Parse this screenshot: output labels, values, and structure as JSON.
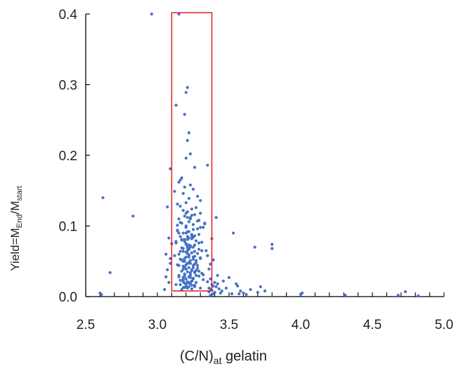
{
  "chart_data": {
    "type": "scatter",
    "xlabel": {
      "main": "(C/N)",
      "sub": "at",
      "rest": " gelatin"
    },
    "ylabel": {
      "main": "Yield=M",
      "sub1": "End",
      "mid": "/M",
      "sub2": "start"
    },
    "xlim": [
      2.5,
      5.0
    ],
    "ylim": [
      0.0,
      0.4
    ],
    "xticks": [
      "2.5",
      "3.0",
      "3.5",
      "4.0",
      "4.5",
      "5.0"
    ],
    "xtick_values": [
      2.5,
      3.0,
      3.5,
      4.0,
      4.5,
      5.0
    ],
    "yticks": [
      "0.0",
      "0.1",
      "0.2",
      "0.3",
      "0.4"
    ],
    "ytick_values": [
      0.0,
      0.1,
      0.2,
      0.3,
      0.4
    ],
    "grid": false,
    "marker_color": "#4472c4",
    "highlight_box": {
      "x": [
        3.1,
        3.38
      ],
      "y": [
        0.008,
        0.4
      ],
      "color": "#e02020"
    },
    "points": {
      "x": [
        2.96,
        3.15,
        3.21,
        3.2,
        3.13,
        3.19,
        3.22,
        3.21,
        3.23,
        3.2,
        3.35,
        3.26,
        3.09,
        3.17,
        3.16,
        3.15,
        3.23,
        3.19,
        3.25,
        3.12,
        3.18,
        3.28,
        3.22,
        3.3,
        3.2,
        3.14,
        3.16,
        3.27,
        3.24,
        3.18,
        3.21,
        3.3,
        3.26,
        3.19,
        3.23,
        3.15,
        3.29,
        3.22,
        3.17,
        3.25,
        3.2,
        3.32,
        3.28,
        3.14,
        3.21,
        3.18,
        3.24,
        3.26,
        3.16,
        3.22,
        3.19,
        3.27,
        3.31,
        3.13,
        3.2,
        3.23,
        3.25,
        3.17,
        3.29,
        3.21,
        3.18,
        3.24,
        3.15,
        3.22,
        3.26,
        3.2,
        3.3,
        3.16,
        3.23,
        3.19,
        3.27,
        3.21,
        3.14,
        3.25,
        3.18,
        3.22,
        3.28,
        3.2,
        3.24,
        3.17,
        3.21,
        3.26,
        3.19,
        3.23,
        3.15,
        3.29,
        3.22,
        3.18,
        3.25,
        3.2,
        3.32,
        3.16,
        3.24,
        3.21,
        3.27,
        3.19,
        3.23,
        3.13,
        3.26,
        3.2,
        3.22,
        3.18,
        3.3,
        3.24,
        3.17,
        3.21,
        3.25,
        3.19,
        3.28,
        3.15,
        3.23,
        3.2,
        3.26,
        3.22,
        3.18,
        3.24,
        3.16,
        3.29,
        3.21,
        3.19,
        3.27,
        3.23,
        3.2,
        3.14,
        3.25,
        3.22,
        3.18,
        3.31,
        3.24,
        3.2,
        3.17,
        3.26,
        3.21,
        3.23,
        3.19,
        3.28,
        3.15,
        3.22,
        3.25,
        3.2,
        3.18,
        3.24,
        3.3,
        3.21,
        3.16,
        3.23,
        3.27,
        3.19,
        3.22,
        3.2,
        3.12,
        3.25,
        3.18,
        3.33,
        3.24,
        3.21,
        3.17,
        3.26,
        3.2,
        3.23,
        3.14,
        3.29,
        3.22,
        3.19,
        3.25,
        3.21,
        3.18,
        3.27,
        3.23,
        3.16,
        3.2,
        3.24,
        3.31,
        3.22,
        3.19,
        3.26,
        3.13,
        3.21,
        3.28,
        3.18,
        3.24,
        3.2,
        3.15,
        3.23,
        3.25,
        3.29,
        3.22,
        3.17,
        3.2,
        3.26,
        3.19,
        3.21,
        3.3,
        3.24,
        3.18,
        2.62,
        2.83,
        2.6,
        2.67,
        2.61,
        3.07,
        3.08,
        3.06,
        3.09,
        3.07,
        3.05,
        3.08,
        3.1,
        3.09,
        3.06,
        3.36,
        3.38,
        3.4,
        3.42,
        3.37,
        3.39,
        3.41,
        3.43,
        3.45,
        3.38,
        3.4,
        3.36,
        3.39,
        3.44,
        3.37,
        3.41,
        3.42,
        3.46,
        3.38,
        3.4,
        3.5,
        3.53,
        3.55,
        3.58,
        3.6,
        3.48,
        3.52,
        3.56,
        3.65,
        3.7,
        3.72,
        3.68,
        3.75,
        3.8,
        3.8,
        3.62,
        3.57,
        4.0,
        4.01,
        4.31,
        4.68,
        4.73,
        4.82,
        3.35,
        3.37,
        3.33,
        3.38,
        3.34,
        3.36,
        3.39,
        3.32,
        3.35,
        3.37
      ],
      "y": [
        0.4,
        0.4,
        0.296,
        0.289,
        0.271,
        0.258,
        0.232,
        0.221,
        0.202,
        0.196,
        0.186,
        0.183,
        0.181,
        0.168,
        0.165,
        0.162,
        0.158,
        0.155,
        0.152,
        0.149,
        0.146,
        0.142,
        0.139,
        0.136,
        0.133,
        0.131,
        0.128,
        0.126,
        0.124,
        0.122,
        0.12,
        0.118,
        0.116,
        0.114,
        0.112,
        0.11,
        0.108,
        0.106,
        0.104,
        0.102,
        0.1,
        0.098,
        0.096,
        0.094,
        0.092,
        0.09,
        0.088,
        0.086,
        0.085,
        0.083,
        0.081,
        0.079,
        0.077,
        0.076,
        0.074,
        0.072,
        0.07,
        0.069,
        0.067,
        0.065,
        0.064,
        0.062,
        0.06,
        0.059,
        0.057,
        0.056,
        0.054,
        0.053,
        0.051,
        0.05,
        0.048,
        0.047,
        0.045,
        0.044,
        0.043,
        0.041,
        0.04,
        0.039,
        0.037,
        0.036,
        0.035,
        0.034,
        0.032,
        0.031,
        0.03,
        0.029,
        0.028,
        0.027,
        0.026,
        0.025,
        0.024,
        0.023,
        0.022,
        0.021,
        0.02,
        0.019,
        0.018,
        0.017,
        0.016,
        0.015,
        0.014,
        0.013,
        0.012,
        0.011,
        0.01,
        0.112,
        0.095,
        0.078,
        0.061,
        0.044,
        0.027,
        0.09,
        0.073,
        0.056,
        0.039,
        0.022,
        0.105,
        0.088,
        0.071,
        0.054,
        0.037,
        0.02,
        0.118,
        0.101,
        0.084,
        0.067,
        0.05,
        0.033,
        0.016,
        0.098,
        0.081,
        0.064,
        0.047,
        0.03,
        0.013,
        0.107,
        0.09,
        0.073,
        0.056,
        0.039,
        0.022,
        0.115,
        0.098,
        0.081,
        0.064,
        0.047,
        0.03,
        0.013,
        0.092,
        0.075,
        0.058,
        0.041,
        0.024,
        0.103,
        0.086,
        0.069,
        0.052,
        0.035,
        0.018,
        0.11,
        0.093,
        0.076,
        0.059,
        0.042,
        0.025,
        0.085,
        0.068,
        0.051,
        0.034,
        0.017,
        0.099,
        0.082,
        0.065,
        0.048,
        0.031,
        0.014,
        0.078,
        0.061,
        0.044,
        0.027,
        0.062,
        0.045,
        0.028,
        0.07,
        0.053,
        0.036,
        0.019,
        0.08,
        0.063,
        0.046,
        0.029,
        0.012,
        0.055,
        0.038,
        0.021,
        0.14,
        0.114,
        0.005,
        0.034,
        0.003,
        0.127,
        0.083,
        0.06,
        0.047,
        0.038,
        0.01,
        0.02,
        0.075,
        0.054,
        0.028,
        0.012,
        0.009,
        0.006,
        0.018,
        0.025,
        0.004,
        0.014,
        0.011,
        0.008,
        0.003,
        0.02,
        0.007,
        0.015,
        0.005,
        0.002,
        0.112,
        0.03,
        0.022,
        0.017,
        0.006,
        0.027,
        0.09,
        0.018,
        0.008,
        0.005,
        0.012,
        0.004,
        0.015,
        0.01,
        0.006,
        0.014,
        0.07,
        0.008,
        0.074,
        0.068,
        0.003,
        0.004,
        0.003,
        0.005,
        0.002,
        0.002,
        0.007,
        0.001,
        0.058,
        0.046,
        0.104,
        0.082,
        0.065,
        0.039,
        0.052,
        0.031,
        0.021,
        0.011
      ]
    }
  }
}
